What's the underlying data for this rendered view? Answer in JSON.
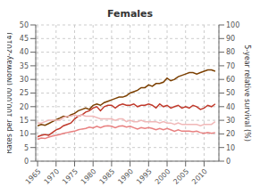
{
  "chart_data": {
    "type": "line",
    "title": "Females",
    "ylabel": "Rates per 100,000 (Norway-2014)",
    "y2label": "5-year relative survival (%)",
    "x": [
      1965,
      1966,
      1967,
      1968,
      1969,
      1970,
      1971,
      1972,
      1973,
      1974,
      1975,
      1976,
      1977,
      1978,
      1979,
      1980,
      1981,
      1982,
      1983,
      1984,
      1985,
      1986,
      1987,
      1988,
      1989,
      1990,
      1991,
      1992,
      1993,
      1994,
      1995,
      1996,
      1997,
      1998,
      1999,
      2000,
      2001,
      2002,
      2003,
      2004,
      2005,
      2006,
      2007,
      2008,
      2009,
      2010,
      2011,
      2012,
      2013
    ],
    "xlim": [
      1964.5,
      2014
    ],
    "xticks": [
      1965,
      1970,
      1975,
      1980,
      1985,
      1990,
      1995,
      2000,
      2005,
      2010
    ],
    "ylim": [
      0,
      50
    ],
    "yticks": [
      0,
      5,
      10,
      15,
      20,
      25,
      30,
      35,
      40,
      45,
      50
    ],
    "y2lim": [
      0,
      100
    ],
    "y2ticks": [
      0,
      10,
      20,
      30,
      40,
      50,
      60,
      70,
      80,
      90,
      100
    ],
    "grid": true,
    "series": [
      {
        "color": "#7B3F00",
        "values": [
          13.0,
          13.5,
          13.2,
          13.8,
          14.5,
          15.2,
          15.8,
          16.5,
          16.2,
          17.0,
          17.5,
          18.5,
          19.0,
          19.5,
          19.0,
          20.5,
          21.0,
          20.5,
          21.5,
          22.0,
          22.5,
          23.0,
          23.5,
          23.5,
          24.0,
          25.0,
          25.5,
          26.0,
          27.0,
          27.0,
          28.0,
          27.5,
          28.5,
          28.5,
          29.0,
          30.5,
          29.5,
          30.0,
          31.0,
          31.5,
          32.0,
          32.5,
          32.5,
          32.0,
          32.5,
          33.0,
          33.5,
          33.5,
          33.0
        ]
      },
      {
        "color": "#C0392B",
        "values": [
          9.0,
          9.5,
          9.8,
          9.5,
          10.5,
          11.5,
          12.0,
          13.0,
          13.5,
          14.0,
          15.5,
          16.5,
          17.0,
          18.0,
          18.5,
          19.5,
          20.0,
          18.5,
          20.0,
          20.5,
          20.5,
          19.5,
          20.5,
          21.0,
          20.5,
          20.5,
          21.0,
          20.0,
          20.5,
          20.5,
          21.0,
          20.5,
          19.5,
          21.0,
          20.0,
          20.5,
          19.5,
          20.0,
          20.5,
          19.5,
          20.0,
          19.5,
          20.5,
          20.0,
          19.0,
          19.5,
          20.5,
          20.0,
          21.0
        ]
      },
      {
        "color": "#E88080",
        "values": [
          8.0,
          8.5,
          8.3,
          8.8,
          9.2,
          9.5,
          9.8,
          10.2,
          10.5,
          10.8,
          11.0,
          11.5,
          11.8,
          12.0,
          12.5,
          12.2,
          12.8,
          12.3,
          12.8,
          13.0,
          12.8,
          12.3,
          12.8,
          13.0,
          12.5,
          12.8,
          12.3,
          11.8,
          12.3,
          12.0,
          12.3,
          12.0,
          11.5,
          12.0,
          11.5,
          12.0,
          11.5,
          11.0,
          11.5,
          11.0,
          11.0,
          11.0,
          10.8,
          11.0,
          10.5,
          10.2,
          10.5,
          10.2,
          10.5
        ]
      },
      {
        "color": "#F0B8B8",
        "axis": "y2",
        "values": [
          28,
          28,
          29,
          30,
          30,
          30,
          30,
          32,
          33,
          33,
          34,
          33,
          34,
          33,
          33,
          33,
          32,
          31,
          31,
          31,
          31,
          30,
          31,
          31,
          29,
          30,
          29,
          29,
          30,
          29,
          29,
          29,
          29,
          28,
          29,
          28,
          28,
          27,
          28,
          27,
          27,
          27,
          27,
          27,
          26,
          27,
          27,
          27,
          29
        ]
      }
    ]
  }
}
